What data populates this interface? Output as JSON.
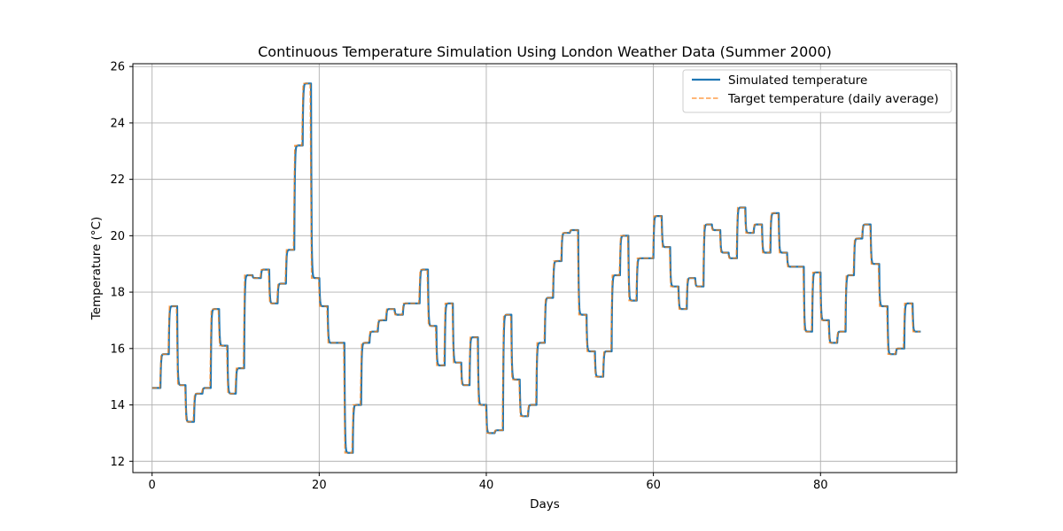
{
  "chart_data": {
    "type": "line",
    "title": "Continuous Temperature Simulation Using London Weather Data (Summer 2000)",
    "xlabel": "Days",
    "ylabel": "Temperature (°C)",
    "xlim": [
      -2.3,
      96.3
    ],
    "ylim": [
      11.6,
      26.1
    ],
    "xticks": [
      0,
      20,
      40,
      60,
      80
    ],
    "yticks": [
      12,
      14,
      16,
      18,
      20,
      22,
      24,
      26
    ],
    "xtick_labels": [
      "0",
      "20",
      "40",
      "60",
      "80"
    ],
    "ytick_labels": [
      "12",
      "14",
      "16",
      "18",
      "20",
      "22",
      "24",
      "26"
    ],
    "grid": true,
    "legend_position": "upper right",
    "daily_target": [
      14.6,
      15.8,
      17.5,
      14.7,
      13.4,
      14.4,
      14.6,
      17.4,
      16.1,
      14.4,
      15.3,
      18.6,
      18.5,
      18.8,
      17.6,
      18.3,
      19.5,
      23.2,
      25.4,
      18.5,
      17.5,
      16.2,
      16.2,
      12.3,
      14.0,
      16.2,
      16.6,
      17.0,
      17.4,
      17.2,
      17.6,
      17.6,
      18.8,
      16.8,
      15.4,
      17.6,
      15.5,
      14.7,
      16.4,
      14.0,
      13.0,
      13.1,
      17.2,
      14.9,
      13.6,
      14.0,
      16.2,
      17.8,
      19.1,
      20.1,
      20.2,
      17.2,
      15.9,
      15.0,
      15.9,
      18.6,
      20.0,
      17.7,
      19.2,
      19.2,
      20.7,
      19.6,
      18.2,
      17.4,
      18.5,
      18.2,
      20.4,
      20.2,
      19.4,
      19.2,
      21.0,
      20.1,
      20.4,
      19.4,
      20.8,
      19.4,
      18.9,
      18.9,
      16.6,
      18.7,
      17.0,
      16.2,
      16.6,
      18.6,
      19.9,
      20.4,
      19.0,
      17.5,
      15.8,
      16.0,
      17.6,
      16.6
    ],
    "series": [
      {
        "name": "Simulated temperature",
        "color": "#1f77b4",
        "style": "solid"
      },
      {
        "name": "Target temperature (daily average)",
        "color": "#ff7f0e",
        "style": "dashed"
      }
    ]
  }
}
